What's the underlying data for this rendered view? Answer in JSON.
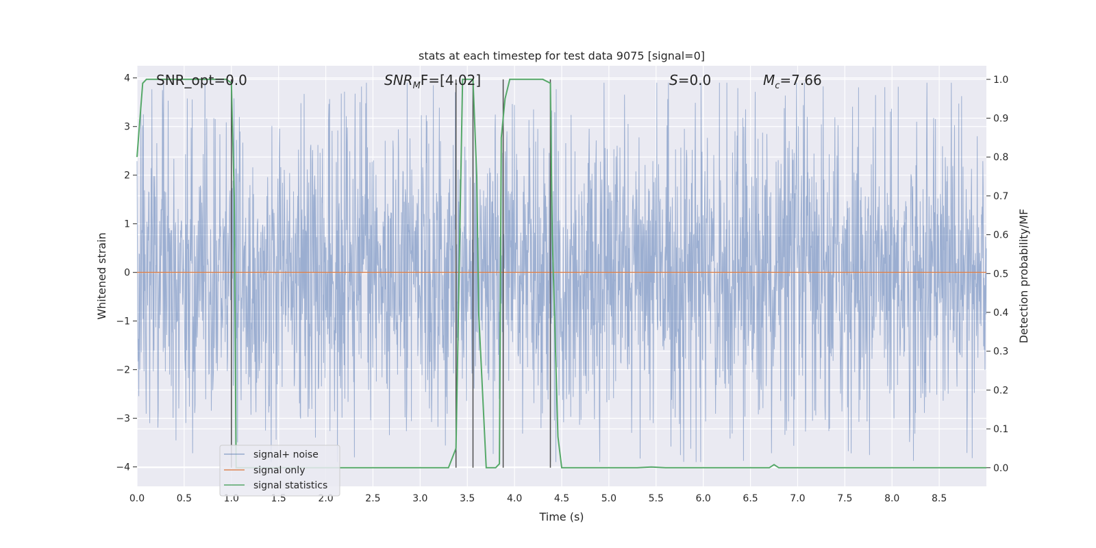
{
  "chart_data": {
    "type": "line",
    "title": "stats at each timestep for test data 9075 [signal=0]",
    "xlabel": "Time (s)",
    "ylabel": "Whitened strain",
    "ylabel_right": "Detection probability/MF",
    "xlim": [
      0,
      9.0
    ],
    "ylim_left": [
      -4.4,
      4.25
    ],
    "ylim_right": [
      -0.048,
      1.035
    ],
    "x_ticks": [
      0.0,
      0.5,
      1.0,
      1.5,
      2.0,
      2.5,
      3.0,
      3.5,
      4.0,
      4.5,
      5.0,
      5.5,
      6.0,
      6.5,
      7.0,
      7.5,
      8.0,
      8.5
    ],
    "x_tick_labels": [
      "0.0",
      "0.5",
      "1.0",
      "1.5",
      "2.0",
      "2.5",
      "3.0",
      "3.5",
      "4.0",
      "4.5",
      "5.0",
      "5.5",
      "6.0",
      "6.5",
      "7.0",
      "7.5",
      "8.0",
      "8.5"
    ],
    "y_left_ticks": [
      4,
      3,
      2,
      1,
      0,
      -1,
      -2,
      -3,
      -4
    ],
    "y_left_tick_labels": [
      "4",
      "3",
      "2",
      "1",
      "0",
      "−1",
      "−2",
      "−3",
      "−4"
    ],
    "y_right_ticks": [
      1.0,
      0.9,
      0.8,
      0.7,
      0.6,
      0.5,
      0.4,
      0.3,
      0.2,
      0.1,
      0.0
    ],
    "y_right_tick_labels": [
      "1.0",
      "0.9",
      "0.8",
      "0.7",
      "0.6",
      "0.5",
      "0.4",
      "0.3",
      "0.2",
      "0.1",
      "0.0"
    ],
    "grid": true,
    "legend_position": "lower-left",
    "annotations": {
      "snr_opt": "SNR_opt=0.0",
      "snr_mf_name": "SNR",
      "snr_mf_sub": "M",
      "snr_mf_rest": "F=[4.02]",
      "s_name": "S",
      "s_rest": "=0.0",
      "mc_name": "M",
      "mc_sub": "c",
      "mc_rest": "=7.66"
    },
    "series": [
      {
        "name": "signal+ noise",
        "color": "#4c72b0",
        "axis": "left",
        "noise_envelope": {
          "typical_amplitude": 1.6,
          "peak_amplitude": 3.9
        }
      },
      {
        "name": "signal only",
        "color": "#dd8452",
        "axis": "left",
        "x": [
          0.0,
          9.0
        ],
        "values": [
          0.0,
          0.0
        ]
      },
      {
        "name": "signal statistics",
        "color": "#55a868",
        "axis": "right",
        "x": [
          0.0,
          0.06,
          0.1,
          0.2,
          0.5,
          0.8,
          0.95,
          1.0,
          1.03,
          1.05,
          1.1,
          1.5,
          2.0,
          2.5,
          3.0,
          3.3,
          3.38,
          3.42,
          3.45,
          3.5,
          3.56,
          3.6,
          3.62,
          3.7,
          3.8,
          3.84,
          3.86,
          3.9,
          3.95,
          4.0,
          4.3,
          4.38,
          4.4,
          4.46,
          4.5,
          5.0,
          5.3,
          5.45,
          5.6,
          6.0,
          6.5,
          6.7,
          6.75,
          6.8,
          6.85,
          7.0,
          7.5,
          8.0,
          8.5,
          9.0
        ],
        "values": [
          0.8,
          0.99,
          1.0,
          1.0,
          1.0,
          1.0,
          1.0,
          0.99,
          0.7,
          0.0,
          0.0,
          0.0,
          0.0,
          0.0,
          0.0,
          0.0,
          0.05,
          0.6,
          1.0,
          1.0,
          1.0,
          0.75,
          0.4,
          0.0,
          0.0,
          0.01,
          0.85,
          0.95,
          1.0,
          1.0,
          1.0,
          0.99,
          0.6,
          0.08,
          0.0,
          0.0,
          0.0,
          0.002,
          0.0,
          0.0,
          0.0,
          0.0,
          0.008,
          0.0,
          0.0,
          0.0,
          0.0,
          0.0,
          0.0,
          0.0
        ]
      }
    ],
    "vertical_lines": [
      1.0,
      3.38,
      3.56,
      3.88,
      4.38
    ]
  }
}
